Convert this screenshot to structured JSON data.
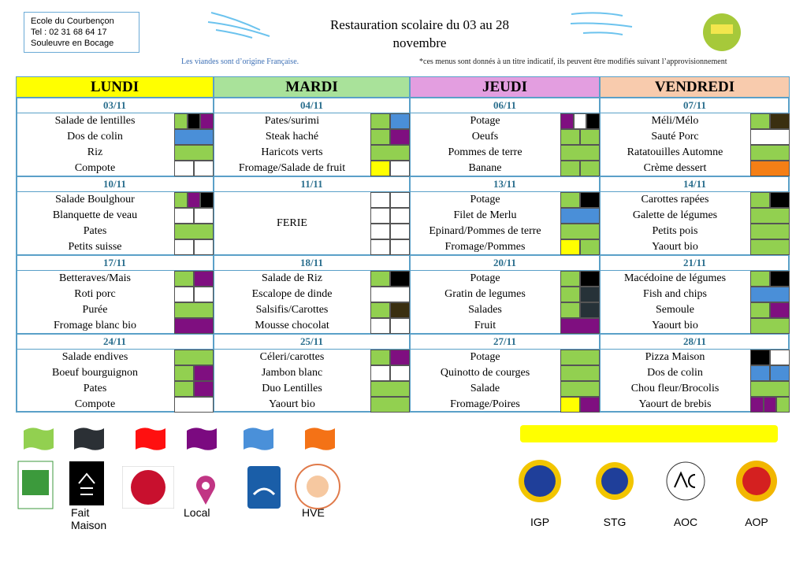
{
  "school": {
    "lines": [
      "Ecole du Courbençon",
      "Tel : 02 31 68 64 17",
      "Souleuvre en Bocage"
    ]
  },
  "title": {
    "lines": [
      "Restauration scolaire du 03 au 28",
      "novembre"
    ]
  },
  "notes": {
    "origin": "Les viandes sont d’origine Française.",
    "disclaimer": "*ces menus sont donnés à un titre indicatif, ils peuvent être modifiés suivant l’approvisionnement"
  },
  "days": [
    {
      "name": "LUNDI",
      "color": "#ffff00"
    },
    {
      "name": "MARDI",
      "color": "#a9e29a"
    },
    {
      "name": "JEUDI",
      "color": "#e39ee0"
    },
    {
      "name": "VENDREDI",
      "color": "#f8cbad"
    }
  ],
  "weeks": [
    [
      {
        "date": "03/11",
        "items": [
          "Salade de lentilles",
          "Dos de colin",
          "Riz",
          "Compote"
        ],
        "marks": [
          [
            "#92d050",
            "#000000",
            "#7f0f80"
          ],
          [
            "#4a8fd8"
          ],
          [
            "#92d050"
          ],
          [
            "#ffffff",
            "#ffffff"
          ]
        ]
      },
      {
        "date": "04/11",
        "items": [
          "Pates/surimi",
          "Steak haché",
          "Haricots verts",
          "Fromage/Salade de fruit"
        ],
        "marks": [
          [
            "#92d050",
            "#4a8fd8"
          ],
          [
            "#92d050",
            "#7f0f80"
          ],
          [
            "#92d050"
          ],
          [
            "#ffff00",
            "#ffffff"
          ]
        ]
      },
      {
        "date": "06/11",
        "items": [
          "Potage",
          "Oeufs",
          "Pommes de terre",
          "Banane"
        ],
        "marks": [
          [
            "#7f0f80",
            "#ffffff",
            "#000000"
          ],
          [
            "#92d050",
            "#92d050"
          ],
          [
            "#92d050"
          ],
          [
            "#92d050",
            "#92d050"
          ]
        ]
      },
      {
        "date": "07/11",
        "items": [
          "Méli/Mélo",
          "Sauté Porc",
          "Ratatouilles Automne",
          "Crème dessert"
        ],
        "marks": [
          [
            "#92d050",
            "#3a2f10"
          ],
          [
            "#ffffff"
          ],
          [
            "#92d050"
          ],
          [
            "#f47f16"
          ]
        ]
      }
    ],
    [
      {
        "date": "10/11",
        "items": [
          "Salade Boulghour",
          "Blanquette de veau",
          "Pates",
          "Petits suisse"
        ],
        "marks": [
          [
            "#92d050",
            "#7f0f80",
            "#000000"
          ],
          [
            "#ffffff",
            "#ffffff"
          ],
          [
            "#92d050"
          ],
          [
            "#ffffff",
            "#ffffff"
          ]
        ]
      },
      {
        "date": "11/11",
        "items": [
          "FERIE"
        ],
        "marks": [
          [
            "#ffffff",
            "#ffffff"
          ],
          [
            "#ffffff",
            "#ffffff"
          ],
          [
            "#ffffff",
            "#ffffff"
          ],
          [
            "#ffffff",
            "#ffffff"
          ]
        ]
      },
      {
        "date": "13/11",
        "items": [
          "Potage",
          "Filet de Merlu",
          "Epinard/Pommes de terre",
          "Fromage/Pommes"
        ],
        "marks": [
          [
            "#92d050",
            "#000000"
          ],
          [
            "#4a8fd8"
          ],
          [
            "#92d050"
          ],
          [
            "#ffff00",
            "#92d050"
          ]
        ]
      },
      {
        "date": "14/11",
        "items": [
          "Carottes rapées",
          "Galette de légumes",
          "Petits pois",
          "Yaourt bio"
        ],
        "marks": [
          [
            "#92d050",
            "#000000"
          ],
          [
            "#92d050"
          ],
          [
            "#92d050"
          ],
          [
            "#92d050"
          ]
        ]
      }
    ],
    [
      {
        "date": "17/11",
        "items": [
          "Betteraves/Mais",
          "Roti porc",
          "Purée",
          "Fromage blanc bio"
        ],
        "marks": [
          [
            "#92d050",
            "#7f0f80"
          ],
          [
            "#ffffff",
            "#ffffff"
          ],
          [
            "#92d050"
          ],
          [
            "#7f0f80"
          ]
        ]
      },
      {
        "date": "18/11",
        "items": [
          "Salade  de Riz",
          "Escalope de dinde",
          "Salsifis/Carottes",
          "Mousse chocolat"
        ],
        "marks": [
          [
            "#92d050",
            "#000000"
          ],
          [
            "#ffffff"
          ],
          [
            "#92d050",
            "#3a2f10"
          ],
          [
            "#ffffff",
            "#ffffff"
          ]
        ]
      },
      {
        "date": "20/11",
        "items": [
          "Potage",
          "Gratin de legumes",
          "Salades",
          "Fruit"
        ],
        "marks": [
          [
            "#92d050",
            "#000000"
          ],
          [
            "#92d050",
            "#263238"
          ],
          [
            "#92d050",
            "#263238"
          ],
          [
            "#7f0f80"
          ]
        ]
      },
      {
        "date": "21/11",
        "items": [
          "Macédoine de légumes",
          "Fish and chips",
          "Semoule",
          "Yaourt bio"
        ],
        "marks": [
          [
            "#92d050",
            "#000000"
          ],
          [
            "#4a8fd8"
          ],
          [
            "#92d050",
            "#7f0f80"
          ],
          [
            "#92d050"
          ]
        ]
      }
    ],
    [
      {
        "date": "24/11",
        "items": [
          "Salade endives",
          "Boeuf bourguignon",
          "Pates",
          "Compote"
        ],
        "marks": [
          [
            "#92d050"
          ],
          [
            "#92d050",
            "#7f0f80"
          ],
          [
            "#92d050",
            "#7f0f80"
          ],
          [
            "#ffffff"
          ]
        ]
      },
      {
        "date": "25/11",
        "items": [
          "Céleri/carottes",
          "Jambon blanc",
          "Duo Lentilles",
          "Yaourt bio"
        ],
        "marks": [
          [
            "#92d050",
            "#7f0f80"
          ],
          [
            "#ffffff",
            "#ffffff"
          ],
          [
            "#92d050"
          ],
          [
            "#92d050"
          ]
        ]
      },
      {
        "date": "27/11",
        "items": [
          "Potage",
          "Quinotto de courges",
          "Salade",
          "Fromage/Poires"
        ],
        "marks": [
          [
            "#92d050"
          ],
          [
            "#92d050"
          ],
          [
            "#92d050"
          ],
          [
            "#ffff00",
            "#7f0f80"
          ]
        ]
      },
      {
        "date": "28/11",
        "items": [
          "Pizza Maison",
          "Dos de colin",
          "Chou fleur/Brocolis",
          "Yaourt de brebis"
        ],
        "marks": [
          [
            "#000000",
            "#ffffff"
          ],
          [
            "#4a8fd8",
            "#4a8fd8"
          ],
          [
            "#92d050"
          ],
          [
            "#7f0f80",
            "#7f0f80",
            "#92d050"
          ]
        ]
      }
    ]
  ],
  "legend": {
    "flags": [
      {
        "color": "#92d050"
      },
      {
        "color": "#2b3035",
        "label": [
          "Fait",
          "Maison"
        ]
      },
      {
        "color": "#ff1010"
      },
      {
        "color": "#7b0a80",
        "label": [
          "Local"
        ]
      },
      {
        "color": "#4a90d9"
      },
      {
        "color": "#f47216",
        "label": [
          "HVE"
        ]
      }
    ],
    "highlight": "#ffff00",
    "signs": [
      "IGP",
      "STG",
      "AOC",
      "AOP"
    ]
  }
}
